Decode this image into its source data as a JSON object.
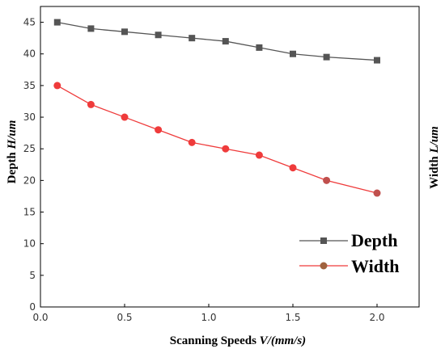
{
  "chart_data": {
    "type": "line",
    "x": [
      0.1,
      0.3,
      0.5,
      0.7,
      0.9,
      1.1,
      1.3,
      1.5,
      1.7,
      2.0
    ],
    "series": [
      {
        "name": "Depth",
        "values": [
          45,
          44,
          43.5,
          43,
          42.5,
          42,
          41,
          40,
          39.5,
          39
        ],
        "color": "#555555",
        "marker": "square"
      },
      {
        "name": "Width",
        "values": [
          35,
          32,
          30,
          28,
          26,
          25,
          24,
          22,
          20,
          18
        ],
        "color": "#ef3b3b",
        "marker": "circle"
      }
    ],
    "xlabel": {
      "text": "Scanning Speeds ",
      "var": "V/(mm/s)"
    },
    "ylabel": {
      "text": "Depth ",
      "var": "H/um"
    },
    "ylabel_right": {
      "text": "Width ",
      "var": "L/um"
    },
    "xlim": [
      0.0,
      2.25
    ],
    "ylim": [
      0,
      47.5
    ],
    "x_ticks": [
      "0.0",
      "0.5",
      "1.0",
      "1.5",
      "2.0"
    ],
    "y_ticks": [
      "0",
      "5",
      "10",
      "15",
      "20",
      "25",
      "30",
      "35",
      "40",
      "45"
    ],
    "legend": {
      "position": "bottom-right"
    },
    "grid": false
  }
}
